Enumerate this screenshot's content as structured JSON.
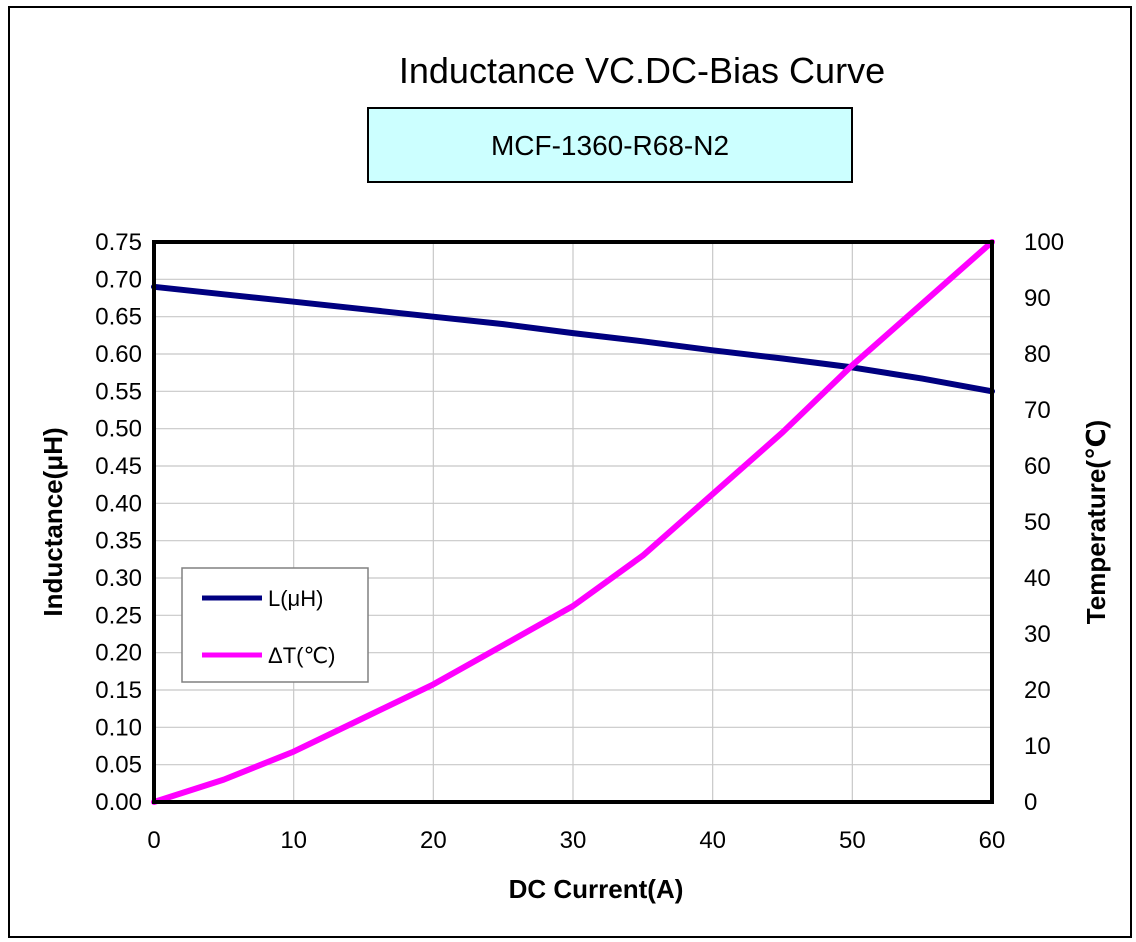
{
  "chart_data": {
    "type": "line",
    "title": "Inductance VC.DC-Bias Curve",
    "subtitle": "MCF-1360-R68-N2",
    "xlabel": "DC Current(A)",
    "ylabel": "Inductance(μH)",
    "y2label": "Temperature(℃)",
    "xlim": [
      0,
      60
    ],
    "ylim": [
      0,
      0.75
    ],
    "y2lim": [
      0,
      100
    ],
    "x_ticks": [
      "0",
      "10",
      "20",
      "30",
      "40",
      "50",
      "60"
    ],
    "y_ticks": [
      "0.00",
      "0.05",
      "0.10",
      "0.15",
      "0.20",
      "0.25",
      "0.30",
      "0.35",
      "0.40",
      "0.45",
      "0.50",
      "0.55",
      "0.60",
      "0.65",
      "0.70",
      "0.75"
    ],
    "y2_ticks": [
      "0",
      "10",
      "20",
      "30",
      "40",
      "50",
      "60",
      "70",
      "80",
      "90",
      "100"
    ],
    "grid": true,
    "legend_position": "left-middle",
    "series": [
      {
        "name": "L(μH)",
        "axis": "left",
        "color": "#000080",
        "x": [
          0,
          5,
          10,
          15,
          20,
          25,
          30,
          35,
          40,
          45,
          50,
          55,
          60
        ],
        "y": [
          0.69,
          0.68,
          0.67,
          0.66,
          0.65,
          0.64,
          0.628,
          0.617,
          0.605,
          0.594,
          0.582,
          0.567,
          0.55
        ]
      },
      {
        "name": "ΔT(℃)",
        "axis": "right",
        "color": "#FF00FF",
        "x": [
          0,
          5,
          10,
          15,
          20,
          25,
          30,
          35,
          40,
          45,
          50,
          55,
          60
        ],
        "y": [
          0,
          4,
          9,
          15,
          21,
          28,
          35,
          44,
          55,
          66,
          78,
          89,
          100
        ]
      }
    ]
  }
}
